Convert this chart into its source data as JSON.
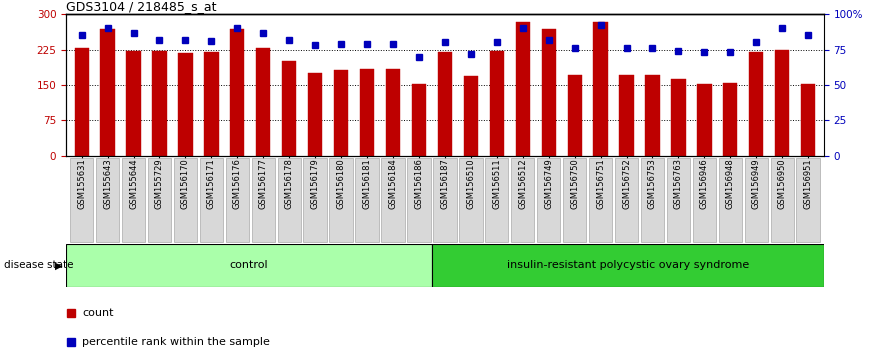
{
  "title": "GDS3104 / 218485_s_at",
  "categories": [
    "GSM155631",
    "GSM155643",
    "GSM155644",
    "GSM155729",
    "GSM156170",
    "GSM156171",
    "GSM156176",
    "GSM156177",
    "GSM156178",
    "GSM156179",
    "GSM156180",
    "GSM156181",
    "GSM156184",
    "GSM156186",
    "GSM156187",
    "GSM156510",
    "GSM156511",
    "GSM156512",
    "GSM156749",
    "GSM156750",
    "GSM156751",
    "GSM156752",
    "GSM156753",
    "GSM156763",
    "GSM156946",
    "GSM156948",
    "GSM156949",
    "GSM156950",
    "GSM156951"
  ],
  "bar_values": [
    228,
    268,
    222,
    222,
    218,
    220,
    268,
    228,
    200,
    175,
    182,
    183,
    183,
    152,
    220,
    168,
    222,
    283,
    268,
    172,
    283,
    172,
    172,
    162,
    153,
    155,
    220,
    225,
    152
  ],
  "dot_values_pct": [
    85,
    90,
    87,
    82,
    82,
    81,
    90,
    87,
    82,
    78,
    79,
    79,
    79,
    70,
    80,
    72,
    80,
    90,
    82,
    76,
    92,
    76,
    76,
    74,
    73,
    73,
    80,
    90,
    85
  ],
  "control_count": 14,
  "ylim_left": [
    0,
    300
  ],
  "ylim_right": [
    0,
    100
  ],
  "yticks_left": [
    0,
    75,
    150,
    225,
    300
  ],
  "ytick_labels_left": [
    "0",
    "75",
    "150",
    "225",
    "300"
  ],
  "yticks_right": [
    0,
    25,
    50,
    75,
    100
  ],
  "ytick_labels_right": [
    "0",
    "25",
    "50",
    "75",
    "100%"
  ],
  "hlines": [
    75,
    150,
    225
  ],
  "bar_color": "#BE0000",
  "dot_color": "#0000BB",
  "control_label": "control",
  "disease_label": "insulin-resistant polycystic ovary syndrome",
  "control_bg": "#AAFFAA",
  "disease_bg": "#33CC33",
  "disease_state_label": "disease state",
  "legend_count": "count",
  "legend_pct": "percentile rank within the sample",
  "bg_color": "#FFFFFF"
}
